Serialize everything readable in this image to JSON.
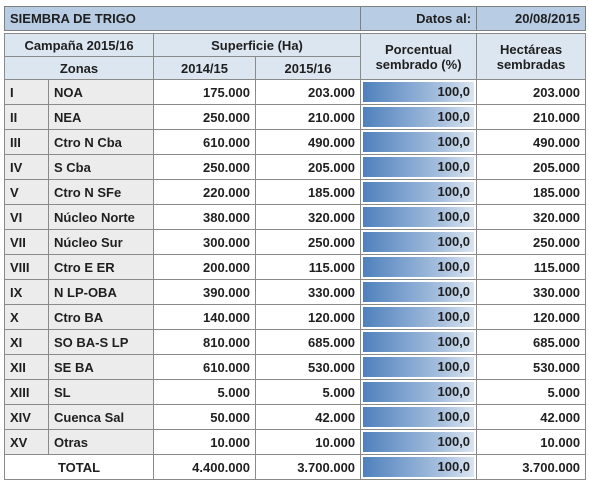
{
  "header": {
    "title": "SIEMBRA DE TRIGO",
    "date_label": "Datos al:",
    "date": "20/08/2015"
  },
  "table": {
    "columns": {
      "campaign": "Campaña 2015/16",
      "surface": "Superficie (Ha)",
      "percent": [
        "Porcentual",
        "sembrado (%)"
      ],
      "hectares": [
        "Hectáreas",
        "sembradas"
      ],
      "zones": "Zonas",
      "year1": "2014/15",
      "year2": "2015/16"
    },
    "rows": [
      [
        "I",
        "NOA",
        "175.000",
        "203.000",
        "100,0",
        "203.000"
      ],
      [
        "II",
        "NEA",
        "250.000",
        "210.000",
        "100,0",
        "210.000"
      ],
      [
        "III",
        "Ctro N Cba",
        "610.000",
        "490.000",
        "100,0",
        "490.000"
      ],
      [
        "IV",
        "S Cba",
        "250.000",
        "205.000",
        "100,0",
        "205.000"
      ],
      [
        "V",
        "Ctro N SFe",
        "220.000",
        "185.000",
        "100,0",
        "185.000"
      ],
      [
        "VI",
        "Núcleo Norte",
        "380.000",
        "320.000",
        "100,0",
        "320.000"
      ],
      [
        "VII",
        "Núcleo Sur",
        "300.000",
        "250.000",
        "100,0",
        "250.000"
      ],
      [
        "VIII",
        "Ctro E ER",
        "200.000",
        "115.000",
        "100,0",
        "115.000"
      ],
      [
        "IX",
        "N LP-OBA",
        "390.000",
        "330.000",
        "100,0",
        "330.000"
      ],
      [
        "X",
        "Ctro BA",
        "140.000",
        "120.000",
        "100,0",
        "120.000"
      ],
      [
        "XI",
        "SO BA-S LP",
        "810.000",
        "685.000",
        "100,0",
        "685.000"
      ],
      [
        "XII",
        "SE BA",
        "610.000",
        "530.000",
        "100,0",
        "530.000"
      ],
      [
        "XIII",
        "SL",
        "5.000",
        "5.000",
        "100,0",
        "5.000"
      ],
      [
        "XIV",
        "Cuenca Sal",
        "50.000",
        "42.000",
        "100,0",
        "42.000"
      ],
      [
        "XV",
        "Otras",
        "10.000",
        "10.000",
        "100,0",
        "10.000"
      ]
    ],
    "total": [
      "TOTAL",
      "4.400.000",
      "3.700.000",
      "100,0",
      "3.700.000"
    ]
  }
}
